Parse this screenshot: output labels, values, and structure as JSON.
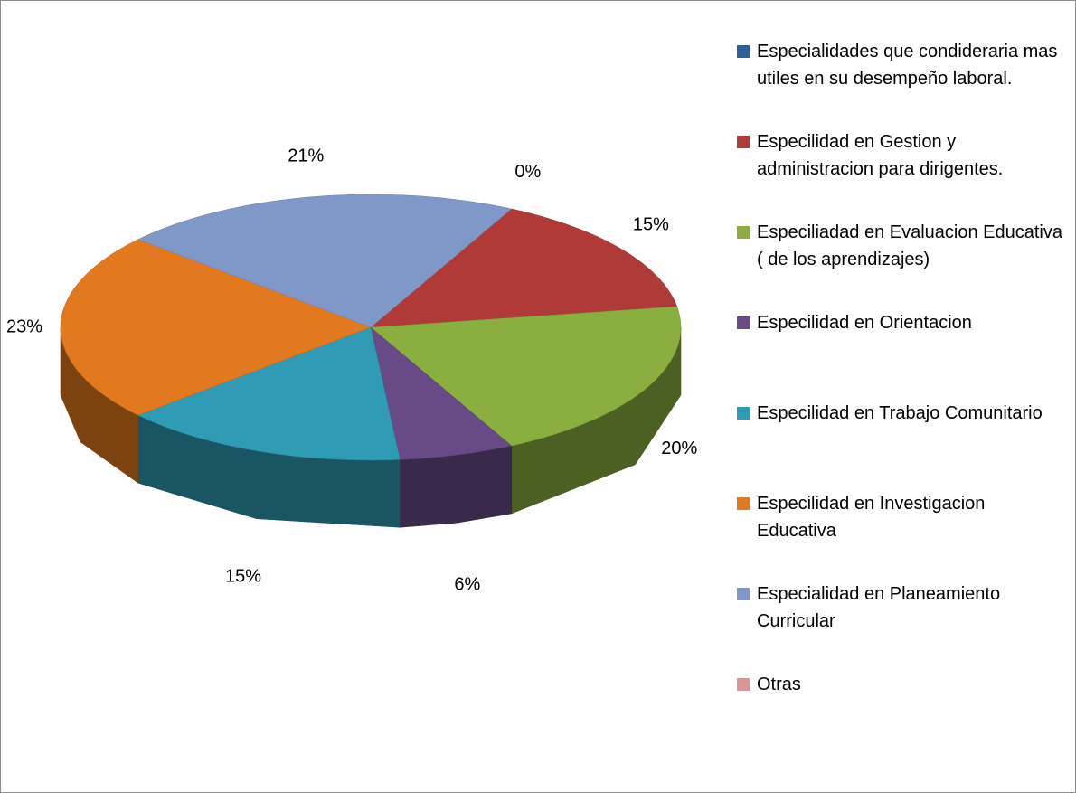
{
  "chart_data": {
    "type": "pie3d",
    "categories": [
      "Especialidades que condideraria mas utiles en su desempeño laboral.",
      "Especilidad en Gestion y administracion para dirigentes.",
      "Especiliadad en Evaluacion Educativa ( de los aprendizajes)",
      "Especilidad en Orientacion",
      "Especilidad en Trabajo Comunitario",
      "Especilidad en Investigacion Educativa",
      "Especialidad en Planeamiento Curricular",
      "Otras"
    ],
    "values": [
      0,
      15,
      20,
      6,
      15,
      23,
      21,
      0
    ],
    "value_labels": [
      "0%",
      "15%",
      "20%",
      "6%",
      "15%",
      "23%",
      "21%",
      null
    ],
    "colors": [
      "#2f5e9c",
      "#b03a38",
      "#8aae3f",
      "#674a86",
      "#2f9bb5",
      "#e2791f",
      "#7f98c8",
      "#d99694"
    ],
    "legend": "right"
  }
}
